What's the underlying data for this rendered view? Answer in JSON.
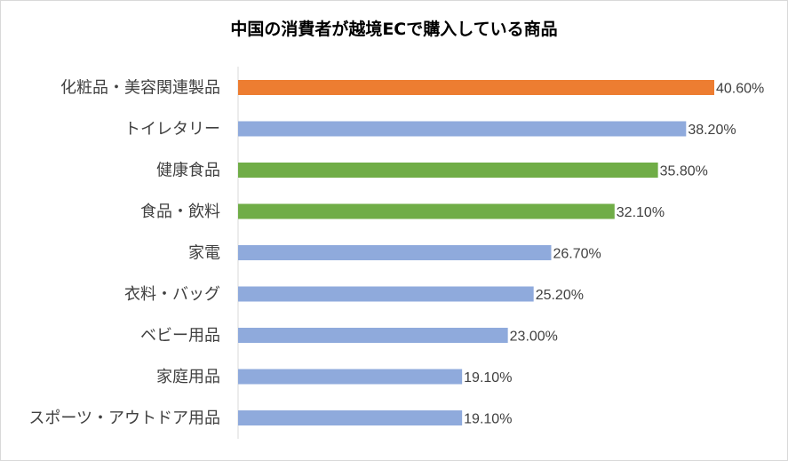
{
  "chart_data": {
    "type": "bar",
    "orientation": "horizontal",
    "title": "中国の消費者が越境ECで購入している商品",
    "categories": [
      "化粧品・美容関連製品",
      "トイレタリー",
      "健康食品",
      "食品・飲料",
      "家電",
      "衣料・バッグ",
      "ベビー用品",
      "家庭用品",
      "スポーツ・アウトドア用品"
    ],
    "values": [
      40.6,
      38.2,
      35.8,
      32.1,
      26.7,
      25.2,
      23.0,
      19.1,
      19.1
    ],
    "data_labels": [
      "40.60%",
      "38.20%",
      "35.80%",
      "32.10%",
      "26.70%",
      "25.20%",
      "23.00%",
      "19.10%",
      "19.10%"
    ],
    "bar_colors": [
      "#ed7d31",
      "#8faadc",
      "#70ad47",
      "#70ad47",
      "#8faadc",
      "#8faadc",
      "#8faadc",
      "#8faadc",
      "#8faadc"
    ],
    "xlim": [
      0,
      40.6
    ],
    "grid": false,
    "legend": "none"
  }
}
